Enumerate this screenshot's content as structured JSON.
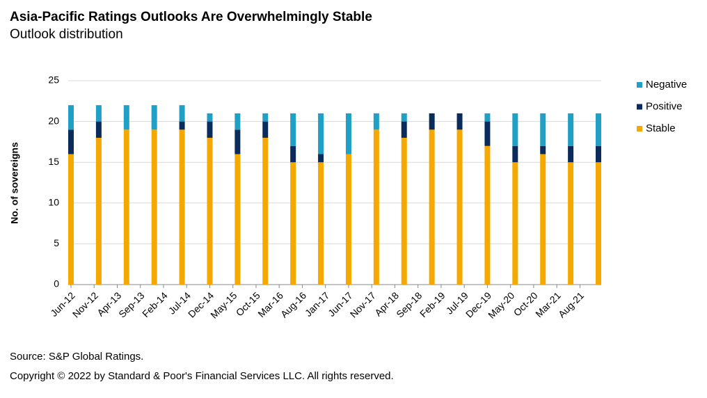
{
  "chart_data": {
    "type": "stacked_bar",
    "title": "Asia-Pacific Ratings Outlooks Are Overwhelmingly Stable",
    "subtitle": "Outlook distribution",
    "y_label": "No. of sovereigns",
    "source": "Source: S&P Global Ratings.",
    "copyright": "Copyright © 2022 by Standard & Poor's Financial Services LLC. All rights reserved.",
    "x": [
      "2012-06",
      "2012-12",
      "2013-06",
      "2013-12",
      "2014-06",
      "2014-12",
      "2015-06",
      "2015-12",
      "2016-06",
      "2016-12",
      "2017-06",
      "2017-12",
      "2018-06",
      "2018-12",
      "2019-06",
      "2019-12",
      "2020-06",
      "2020-12",
      "2021-06",
      "2021-12"
    ],
    "series": [
      {
        "name": "Stable",
        "color": "#f5a800",
        "values": [
          16,
          18,
          19,
          19,
          19,
          18,
          16,
          18,
          15,
          15,
          16,
          19,
          18,
          19,
          19,
          17,
          15,
          16,
          15,
          15
        ]
      },
      {
        "name": "Positive",
        "color": "#0b2c5a",
        "values": [
          3,
          2,
          0,
          0,
          1,
          2,
          3,
          2,
          2,
          1,
          0,
          0,
          2,
          2,
          2,
          3,
          2,
          1,
          2,
          2
        ]
      },
      {
        "name": "Negative",
        "color": "#1fa0c4",
        "values": [
          3,
          2,
          3,
          3,
          2,
          1,
          2,
          1,
          4,
          5,
          5,
          2,
          1,
          0,
          0,
          1,
          4,
          4,
          4,
          4
        ]
      }
    ],
    "ylim": [
      0,
      25
    ],
    "yticks": [
      0,
      5,
      10,
      15,
      20,
      25
    ],
    "grid": true,
    "xticks": [
      {
        "value": "2012-06",
        "label": "Jun-12"
      },
      {
        "value": "2012-11",
        "label": "Nov-12"
      },
      {
        "value": "2013-04",
        "label": "Apr-13"
      },
      {
        "value": "2013-09",
        "label": "Sep-13"
      },
      {
        "value": "2014-02",
        "label": "Feb-14"
      },
      {
        "value": "2014-07",
        "label": "Jul-14"
      },
      {
        "value": "2014-12",
        "label": "Dec-14"
      },
      {
        "value": "2015-05",
        "label": "May-15"
      },
      {
        "value": "2015-10",
        "label": "Oct-15"
      },
      {
        "value": "2016-03",
        "label": "Mar-16"
      },
      {
        "value": "2016-08",
        "label": "Aug-16"
      },
      {
        "value": "2017-01",
        "label": "Jan-17"
      },
      {
        "value": "2017-06",
        "label": "Jun-17"
      },
      {
        "value": "2017-11",
        "label": "Nov-17"
      },
      {
        "value": "2018-04",
        "label": "Apr-18"
      },
      {
        "value": "2018-09",
        "label": "Sep-18"
      },
      {
        "value": "2019-02",
        "label": "Feb-19"
      },
      {
        "value": "2019-07",
        "label": "Jul-19"
      },
      {
        "value": "2019-12",
        "label": "Dec-19"
      },
      {
        "value": "2020-05",
        "label": "May-20"
      },
      {
        "value": "2020-10",
        "label": "Oct-20"
      },
      {
        "value": "2021-03",
        "label": "Mar-21"
      },
      {
        "value": "2021-08",
        "label": "Aug-21"
      }
    ],
    "legend": "right"
  }
}
